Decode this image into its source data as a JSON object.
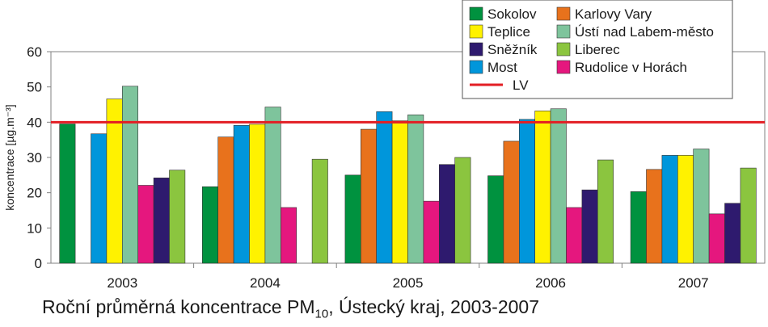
{
  "chart_data": {
    "type": "bar",
    "categories": [
      "2003",
      "2004",
      "2005",
      "2006",
      "2007"
    ],
    "series": [
      {
        "name": "Sokolov",
        "color": "#00923f",
        "values": [
          39.5,
          21.7,
          25.0,
          24.8,
          20.3
        ]
      },
      {
        "name": "Karlovy Vary",
        "color": "#e8721c",
        "values": [
          null,
          35.8,
          38.0,
          34.6,
          26.6
        ]
      },
      {
        "name": "Most",
        "color": "#0096db",
        "values": [
          36.7,
          39.1,
          43.0,
          40.8,
          30.6
        ]
      },
      {
        "name": "Teplice",
        "color": "#fff200",
        "values": [
          46.6,
          39.4,
          40.4,
          43.2,
          30.6
        ]
      },
      {
        "name": "Ústí nad Labem-město",
        "color": "#7ec49c",
        "values": [
          50.2,
          44.3,
          42.1,
          43.8,
          32.4
        ]
      },
      {
        "name": "Rudolice v Horách",
        "color": "#e5177e",
        "values": [
          22.1,
          15.8,
          17.6,
          15.8,
          14.0
        ]
      },
      {
        "name": "Sněžník",
        "color": "#2e1a6e",
        "values": [
          24.2,
          null,
          28.0,
          20.8,
          17.0
        ]
      },
      {
        "name": "Liberec",
        "color": "#8bc53f",
        "values": [
          26.4,
          29.5,
          30.0,
          29.3,
          27.0
        ]
      }
    ],
    "limit_line": {
      "name": "LV",
      "value": 40,
      "color": "#e31e24"
    },
    "ylim": [
      0,
      60
    ],
    "yticks": [
      0,
      10,
      20,
      30,
      40,
      50,
      60
    ],
    "ylabel": "koncentrace [µg.m⁻³]",
    "xlabel": "",
    "grid": false,
    "legend": {
      "placement": "top-right",
      "columns": [
        [
          "Sokolov",
          "Teplice",
          "Sněžník",
          "Most"
        ],
        [
          "Karlovy Vary",
          "Ústí nad Labem-město",
          "Liberec",
          "Rudolice v Horách"
        ]
      ],
      "line_entry": "LV"
    }
  },
  "caption": {
    "main": "Roční průměrná koncentrace PM",
    "subscript": "10",
    "rest": ", Ústecký kraj, 2003-2007"
  }
}
